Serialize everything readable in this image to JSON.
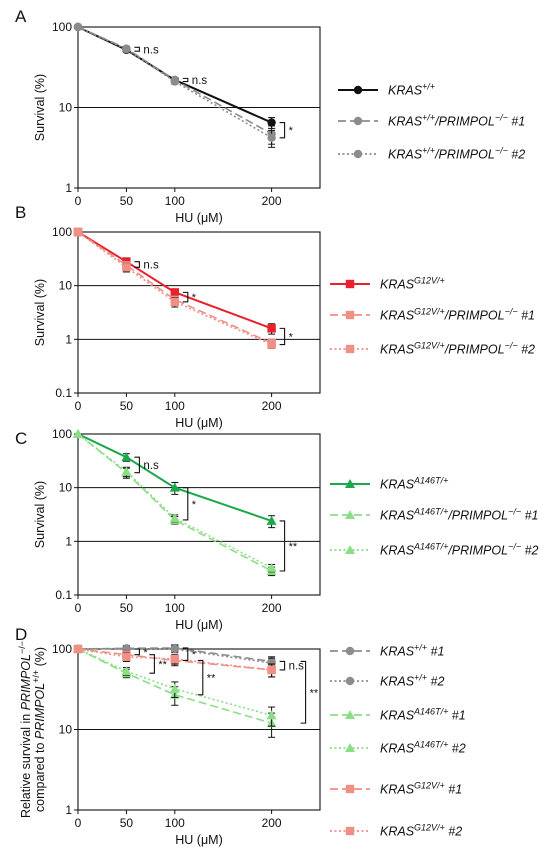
{
  "colors": {
    "black": "#111111",
    "gray": "#8c8c8c",
    "red": "#e8212b",
    "salmon": "#f08f86",
    "green": "#1ba84a",
    "lightgreen": "#8bde86"
  },
  "chart_data": [
    {
      "panel": "A",
      "type": "line",
      "ylog": true,
      "ylim": [
        1,
        100
      ],
      "xlim": [
        0,
        250
      ],
      "xticks": [
        "0",
        "50",
        "100",
        "200"
      ],
      "yticks": [
        "1",
        "10",
        "100"
      ],
      "xlabel": "HU (μM)",
      "ylabel": "Survival (%)",
      "x": [
        0,
        50,
        100,
        200
      ],
      "series": [
        {
          "legend": [
            {
              "t": "KRAS"
            },
            {
              "t": "+/+",
              "sup": true
            }
          ],
          "color": "black",
          "dash": "solid",
          "marker": "circle",
          "values": [
            100,
            52,
            22,
            6.5
          ],
          "err": [
            0,
            3,
            1.5,
            1
          ]
        },
        {
          "legend": [
            {
              "t": "KRAS"
            },
            {
              "t": "+/+",
              "sup": true
            },
            {
              "t": "/PRIMPOL"
            },
            {
              "t": "−/−",
              "sup": true
            },
            {
              "t": " #1"
            }
          ],
          "color": "gray",
          "dash": "dashed",
          "marker": "circle",
          "values": [
            100,
            54,
            22,
            4.7
          ],
          "err": [
            0,
            3,
            1.5,
            1.2
          ]
        },
        {
          "legend": [
            {
              "t": "KRAS"
            },
            {
              "t": "+/+",
              "sup": true
            },
            {
              "t": "/PRIMPOL"
            },
            {
              "t": "−/−",
              "sup": true
            },
            {
              "t": " #2"
            }
          ],
          "color": "gray",
          "dash": "dotted",
          "marker": "circle",
          "values": [
            100,
            53,
            21,
            4.2
          ],
          "err": [
            0,
            3,
            1.5,
            1
          ]
        }
      ],
      "annotations": [
        {
          "type": "bracket",
          "x": 50,
          "y1": 56,
          "y2": 50,
          "label": "n.s"
        },
        {
          "type": "bracket",
          "x": 100,
          "y1": 23,
          "y2": 21,
          "label": "n.s"
        },
        {
          "type": "bracket",
          "x": 200,
          "y1": 6.5,
          "y2": 4.2,
          "label": "*"
        }
      ]
    },
    {
      "panel": "B",
      "type": "line",
      "ylog": true,
      "ylim": [
        0.1,
        100
      ],
      "xlim": [
        0,
        250
      ],
      "xticks": [
        "0",
        "50",
        "100",
        "200"
      ],
      "yticks": [
        "0.1",
        "1",
        "10",
        "100"
      ],
      "xlabel": "HU (μM)",
      "ylabel": "Survival (%)",
      "x": [
        0,
        50,
        100,
        200
      ],
      "series": [
        {
          "legend": [
            {
              "t": "KRAS"
            },
            {
              "t": "G12V/+",
              "sup": true
            }
          ],
          "color": "red",
          "dash": "solid",
          "marker": "square",
          "values": [
            100,
            28,
            7.5,
            1.6
          ],
          "err": [
            0,
            5,
            1,
            0.35
          ]
        },
        {
          "legend": [
            {
              "t": "KRAS"
            },
            {
              "t": "G12V/+",
              "sup": true
            },
            {
              "t": "/PRIMPOL"
            },
            {
              "t": "−/−",
              "sup": true
            },
            {
              "t": " #1"
            }
          ],
          "color": "salmon",
          "dash": "dashed",
          "marker": "square",
          "values": [
            100,
            24,
            5.5,
            0.85
          ],
          "err": [
            0,
            4,
            1,
            0.15
          ]
        },
        {
          "legend": [
            {
              "t": "KRAS"
            },
            {
              "t": "G12V/+",
              "sup": true
            },
            {
              "t": "/PRIMPOL"
            },
            {
              "t": "−/−",
              "sup": true
            },
            {
              "t": " #2"
            }
          ],
          "color": "salmon",
          "dash": "dotted",
          "marker": "square",
          "values": [
            100,
            22,
            5.0,
            0.8
          ],
          "err": [
            0,
            4,
            1,
            0.12
          ]
        }
      ],
      "annotations": [
        {
          "type": "bracket",
          "x": 50,
          "y1": 28,
          "y2": 22,
          "label": "n.s"
        },
        {
          "type": "bracket",
          "x": 100,
          "y1": 7.5,
          "y2": 5.0,
          "label": "*"
        },
        {
          "type": "bracket",
          "x": 200,
          "y1": 1.6,
          "y2": 0.8,
          "label": "*"
        }
      ]
    },
    {
      "panel": "C",
      "type": "line",
      "ylog": true,
      "ylim": [
        0.1,
        100
      ],
      "xlim": [
        0,
        250
      ],
      "xticks": [
        "0",
        "50",
        "100",
        "200"
      ],
      "yticks": [
        "0.1",
        "1",
        "10",
        "100"
      ],
      "xlabel": "HU (μM)",
      "ylabel": "Survival (%)",
      "x": [
        0,
        50,
        100,
        200
      ],
      "series": [
        {
          "legend": [
            {
              "t": "KRAS"
            },
            {
              "t": "A146T/+",
              "sup": true
            }
          ],
          "color": "green",
          "dash": "solid",
          "marker": "triangle",
          "values": [
            100,
            37,
            10,
            2.4
          ],
          "err": [
            0,
            6,
            2.5,
            0.6
          ]
        },
        {
          "legend": [
            {
              "t": "KRAS"
            },
            {
              "t": "A146T/+",
              "sup": true
            },
            {
              "t": "/PRIMPOL"
            },
            {
              "t": "−/−",
              "sup": true
            },
            {
              "t": " #1"
            }
          ],
          "color": "lightgreen",
          "dash": "dashed",
          "marker": "triangle",
          "values": [
            100,
            19,
            2.5,
            0.28
          ],
          "err": [
            0,
            4,
            0.4,
            0.05
          ]
        },
        {
          "legend": [
            {
              "t": "KRAS"
            },
            {
              "t": "A146T/+",
              "sup": true
            },
            {
              "t": "/PRIMPOL"
            },
            {
              "t": "−/−",
              "sup": true
            },
            {
              "t": " #2"
            }
          ],
          "color": "lightgreen",
          "dash": "dotted",
          "marker": "triangle",
          "values": [
            100,
            20,
            2.7,
            0.32
          ],
          "err": [
            0,
            4,
            0.4,
            0.05
          ]
        }
      ],
      "annotations": [
        {
          "type": "bracket",
          "x": 50,
          "y1": 37,
          "y2": 19,
          "label": "n.s"
        },
        {
          "type": "bracket",
          "x": 100,
          "y1": 10,
          "y2": 2.5,
          "label": "*"
        },
        {
          "type": "bracket",
          "x": 200,
          "y1": 2.4,
          "y2": 0.28,
          "label": "**"
        }
      ]
    },
    {
      "panel": "D",
      "type": "line",
      "ylog": true,
      "ylim": [
        1,
        100
      ],
      "xlim": [
        0,
        250
      ],
      "xticks": [
        "0",
        "50",
        "100",
        "200"
      ],
      "yticks": [
        "1",
        "10",
        "100"
      ],
      "xlabel": "HU (μM)",
      "ylabel_lines": [
        [
          {
            "t": "Relative survival in "
          },
          {
            "t": "PRIMPOL",
            "it": true
          },
          {
            "t": "−/−",
            "sup": true
          }
        ],
        [
          {
            "t": "compared to "
          },
          {
            "t": "PRIMPOL",
            "it": true
          },
          {
            "t": "+/+",
            "sup": true
          },
          {
            "t": " (%)"
          }
        ]
      ],
      "x": [
        0,
        50,
        100,
        200
      ],
      "series": [
        {
          "legend": [
            {
              "t": "KRAS"
            },
            {
              "t": "+/+",
              "sup": true
            },
            {
              "t": " #1"
            }
          ],
          "color": "gray",
          "dash": "dashed",
          "marker": "circle",
          "values": [
            100,
            102,
            103,
            70
          ],
          "err": [
            0,
            8,
            10,
            10
          ]
        },
        {
          "legend": [
            {
              "t": "KRAS"
            },
            {
              "t": "+/+",
              "sup": true
            },
            {
              "t": " #2"
            }
          ],
          "color": "gray",
          "dash": "dotted",
          "marker": "circle",
          "values": [
            100,
            100,
            100,
            67
          ],
          "err": [
            0,
            8,
            10,
            10
          ]
        },
        {
          "legend": [
            {
              "t": "KRAS"
            },
            {
              "t": "A146T/+",
              "sup": true
            },
            {
              "t": " #1"
            }
          ],
          "color": "lightgreen",
          "dash": "dashed",
          "marker": "triangle",
          "values": [
            100,
            50,
            27,
            12
          ],
          "err": [
            0,
            6,
            7,
            4
          ]
        },
        {
          "legend": [
            {
              "t": "KRAS"
            },
            {
              "t": "A146T/+",
              "sup": true
            },
            {
              "t": " #2"
            }
          ],
          "color": "lightgreen",
          "dash": "dotted",
          "marker": "triangle",
          "values": [
            100,
            53,
            32,
            15
          ],
          "err": [
            0,
            6,
            7,
            4
          ]
        },
        {
          "legend": [
            {
              "t": "KRAS"
            },
            {
              "t": "G12V/+",
              "sup": true
            },
            {
              "t": " #1"
            }
          ],
          "color": "salmon",
          "dash": "dashed",
          "marker": "square",
          "values": [
            100,
            85,
            72,
            55
          ],
          "err": [
            0,
            10,
            10,
            10
          ]
        },
        {
          "legend": [
            {
              "t": "KRAS"
            },
            {
              "t": "G12V/+",
              "sup": true
            },
            {
              "t": " #2"
            }
          ],
          "color": "salmon",
          "dash": "dotted",
          "marker": "square",
          "values": [
            100,
            80,
            75,
            55
          ],
          "err": [
            0,
            10,
            10,
            10
          ]
        }
      ],
      "annotations": [
        {
          "type": "bracket",
          "x": 50,
          "y1": 100,
          "y2": 85,
          "label": "*"
        },
        {
          "type": "bracket",
          "x": 50,
          "y1": 85,
          "y2": 50,
          "label": "**",
          "offset": 22
        },
        {
          "type": "bracket",
          "x": 100,
          "y1": 103,
          "y2": 72,
          "label": "*"
        },
        {
          "type": "bracket",
          "x": 100,
          "y1": 72,
          "y2": 27,
          "label": "**",
          "offset": 22
        },
        {
          "type": "bracket",
          "x": 200,
          "y1": 70,
          "y2": 55,
          "label": "n.s"
        },
        {
          "type": "bracket",
          "x": 200,
          "y1": 70,
          "y2": 12,
          "label": "**",
          "offset": 28
        }
      ]
    }
  ]
}
